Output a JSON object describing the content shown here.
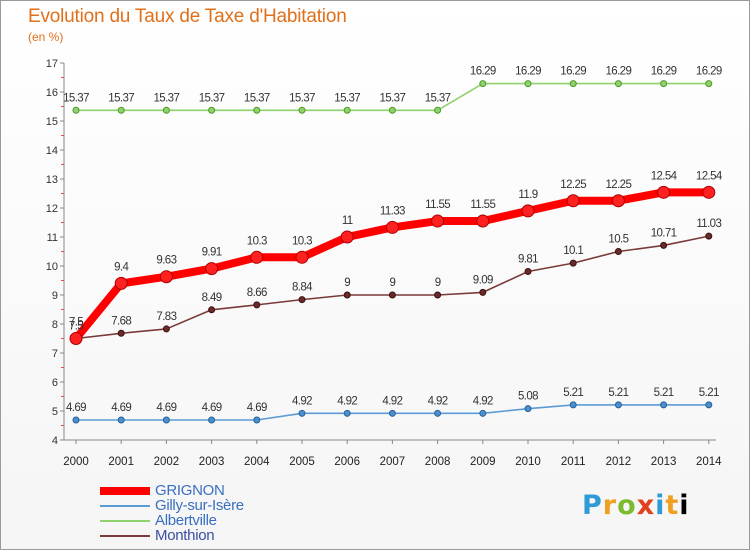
{
  "title": "Evolution du Taux de Taxe d'Habitation",
  "unit_label": "(en %)",
  "logo": {
    "letters": [
      "P",
      "r",
      "o",
      "x",
      "i",
      "t",
      "i"
    ]
  },
  "chart_data": {
    "type": "line",
    "title": "Evolution du Taux de Taxe d'Habitation",
    "ylabel": "(en %)",
    "xlabel": "",
    "categories": [
      "2000",
      "2001",
      "2002",
      "2003",
      "2004",
      "2005",
      "2006",
      "2007",
      "2008",
      "2009",
      "2010",
      "2011",
      "2012",
      "2013",
      "2014"
    ],
    "ylim": [
      4,
      17
    ],
    "yticks": [
      4,
      5,
      6,
      7,
      8,
      9,
      10,
      11,
      12,
      13,
      14,
      15,
      16,
      17
    ],
    "grid": false,
    "legend_position": "bottom-left",
    "series": [
      {
        "name": "GRIGNON",
        "color": "#ff0000",
        "values": [
          7.5,
          9.4,
          9.63,
          9.91,
          10.3,
          10.3,
          11,
          11.33,
          11.55,
          11.55,
          11.9,
          12.25,
          12.25,
          12.54,
          12.54
        ],
        "labels": [
          "7.5",
          "9.4",
          "9.63",
          "9.91",
          "10.3",
          "10.3",
          "11",
          "11.33",
          "11.55",
          "11.55",
          "11.9",
          "12.25",
          "12.25",
          "12.54",
          "12.54"
        ]
      },
      {
        "name": "Gilly-sur-Isère",
        "color": "#5b9bd5",
        "values": [
          4.69,
          4.69,
          4.69,
          4.69,
          4.69,
          4.92,
          4.92,
          4.92,
          4.92,
          4.92,
          5.08,
          5.21,
          5.21,
          5.21,
          5.21
        ],
        "labels": [
          "4.69",
          "4.69",
          "4.69",
          "4.69",
          "4.69",
          "4.92",
          "4.92",
          "4.92",
          "4.92",
          "4.92",
          "5.08",
          "5.21",
          "5.21",
          "5.21",
          "5.21"
        ]
      },
      {
        "name": "Albertville",
        "color": "#8fd16a",
        "values": [
          15.37,
          15.37,
          15.37,
          15.37,
          15.37,
          15.37,
          15.37,
          15.37,
          15.37,
          16.29,
          16.29,
          16.29,
          16.29,
          16.29,
          16.29
        ],
        "labels": [
          "15.37",
          "15.37",
          "15.37",
          "15.37",
          "15.37",
          "15.37",
          "15.37",
          "15.37",
          "15.37",
          "16.29",
          "16.29",
          "16.29",
          "16.29",
          "16.29",
          "16.29"
        ]
      },
      {
        "name": "Monthion",
        "color": "#7a3a3a",
        "values": [
          7.5,
          7.68,
          7.83,
          8.49,
          8.66,
          8.84,
          9,
          9,
          9,
          9.09,
          9.81,
          10.1,
          10.5,
          10.71,
          11.03
        ],
        "labels": [
          "7.5",
          "7.68",
          "7.83",
          "8.49",
          "8.66",
          "8.84",
          "9",
          "9",
          "9",
          "9.09",
          "9.81",
          "10.1",
          "10.5",
          "10.71",
          "11.03"
        ]
      }
    ]
  }
}
